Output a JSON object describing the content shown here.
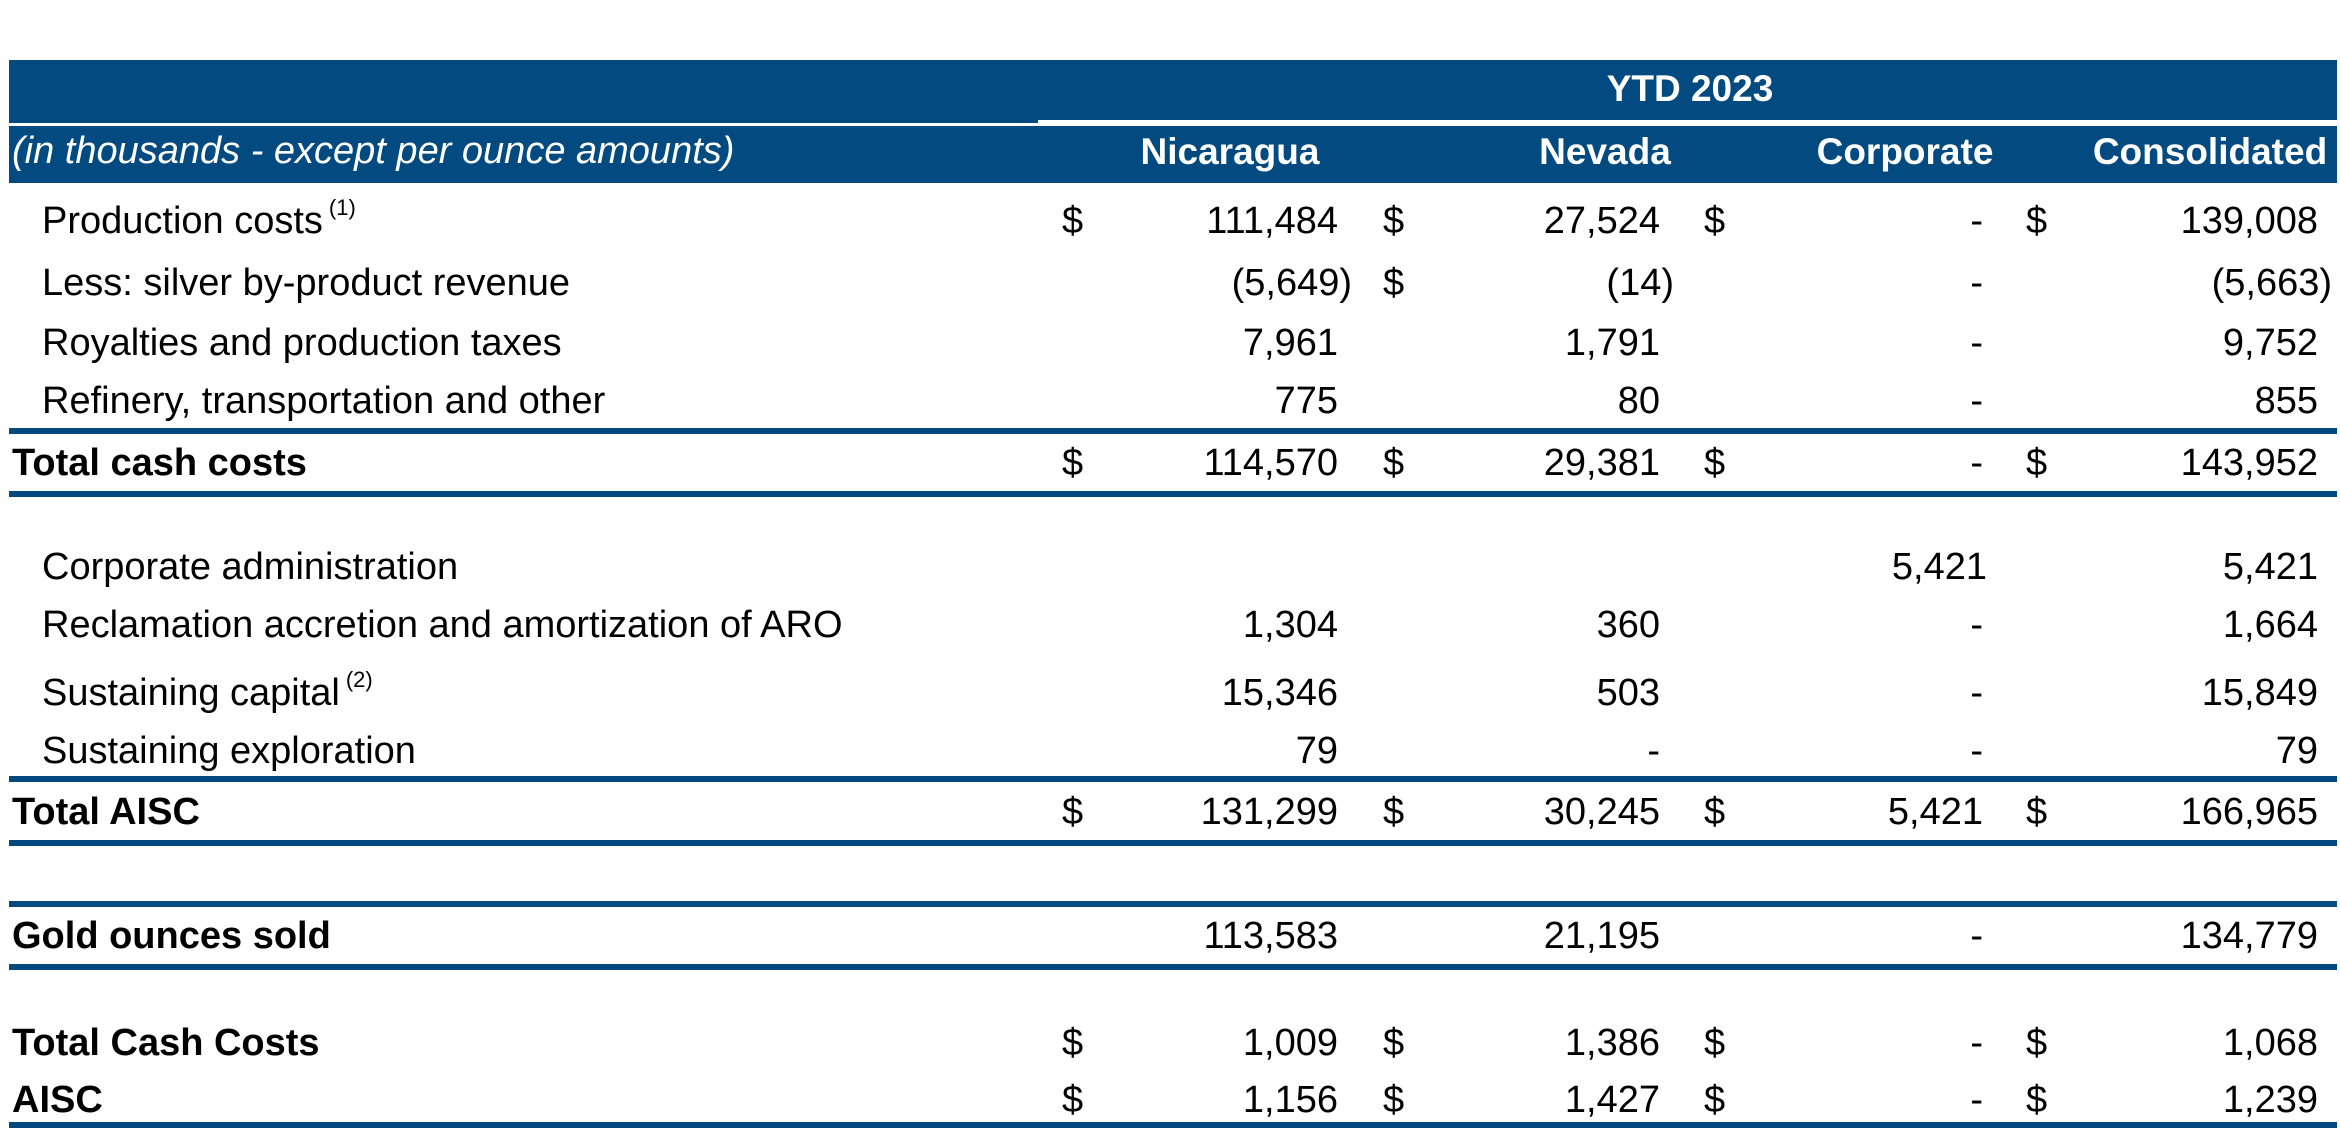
{
  "header": {
    "period": "YTD 2023",
    "units_note": "(in thousands - except per ounce amounts)",
    "columns": [
      "Nicaragua",
      "Nevada",
      "Corporate",
      "Consolidated"
    ]
  },
  "rows": {
    "production_costs": {
      "label": "Production costs",
      "note": "(1)",
      "values": [
        "111,484",
        "27,524",
        "-",
        "139,008"
      ],
      "dollars": [
        "$",
        "$",
        "$",
        "$"
      ]
    },
    "silver_byproduct": {
      "label": "Less: silver by-product revenue",
      "values": [
        "(5,649)",
        "(14)",
        "-",
        "(5,663)"
      ],
      "dollars": [
        "",
        "$",
        "",
        ""
      ]
    },
    "royalties": {
      "label": "Royalties and production taxes",
      "values": [
        "7,961",
        "1,791",
        "-",
        "9,752"
      ]
    },
    "refinery": {
      "label": "Refinery, transportation and other",
      "values": [
        "775",
        "80",
        "-",
        "855"
      ]
    },
    "total_cash_costs": {
      "label": "Total cash costs",
      "values": [
        "114,570",
        "29,381",
        "-",
        "143,952"
      ],
      "dollars": [
        "$",
        "$",
        "$",
        "$"
      ]
    },
    "corporate_admin": {
      "label": "Corporate administration",
      "values": [
        "",
        "",
        "5,421",
        "5,421"
      ]
    },
    "reclamation": {
      "label": "Reclamation accretion and amortization of ARO",
      "values": [
        "1,304",
        "360",
        "-",
        "1,664"
      ]
    },
    "sustaining_capital": {
      "label": "Sustaining capital",
      "note": "(2)",
      "values": [
        "15,346",
        "503",
        "-",
        "15,849"
      ]
    },
    "sustaining_exploration": {
      "label": "Sustaining exploration",
      "values": [
        "79",
        "-",
        "-",
        "79"
      ]
    },
    "total_aisc": {
      "label": "Total AISC",
      "values": [
        "131,299",
        "30,245",
        "5,421",
        "166,965"
      ],
      "dollars": [
        "$",
        "$",
        "$",
        "$"
      ]
    },
    "gold_ounces": {
      "label": "Gold ounces sold",
      "values": [
        "113,583",
        "21,195",
        "-",
        "134,779"
      ]
    },
    "total_cash_costs_oz": {
      "label": "Total Cash Costs",
      "values": [
        "1,009",
        "1,386",
        "-",
        "1,068"
      ],
      "dollars": [
        "$",
        "$",
        "$",
        "$"
      ]
    },
    "aisc_oz": {
      "label": "AISC",
      "values": [
        "1,156",
        "1,427",
        "-",
        "1,239"
      ],
      "dollars": [
        "$",
        "$",
        "$",
        "$"
      ]
    }
  },
  "colors": {
    "header_bg": "#034a80",
    "header_text": "#ffffff",
    "rule": "#034a80"
  }
}
